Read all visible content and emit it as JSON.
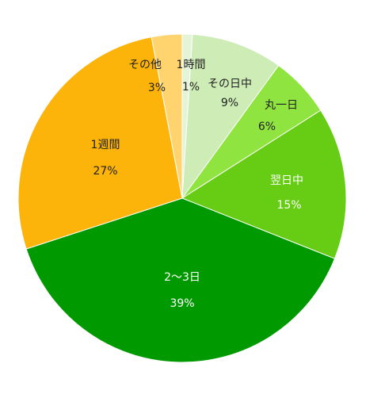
{
  "chart_data": {
    "type": "pie",
    "categories": [
      "1時間",
      "その日中",
      "丸一日",
      "翌日中",
      "2〜3日",
      "1週間",
      "その他"
    ],
    "values": [
      1,
      9,
      6,
      15,
      39,
      27,
      3
    ],
    "value_labels": [
      "1%",
      "9%",
      "6%",
      "15%",
      "39%",
      "27%",
      "3%"
    ],
    "colors": [
      "#e4f4d6",
      "#ceecb6",
      "#90e440",
      "#66cc14",
      "#009900",
      "#fdb40a",
      "#ffd36e"
    ]
  }
}
